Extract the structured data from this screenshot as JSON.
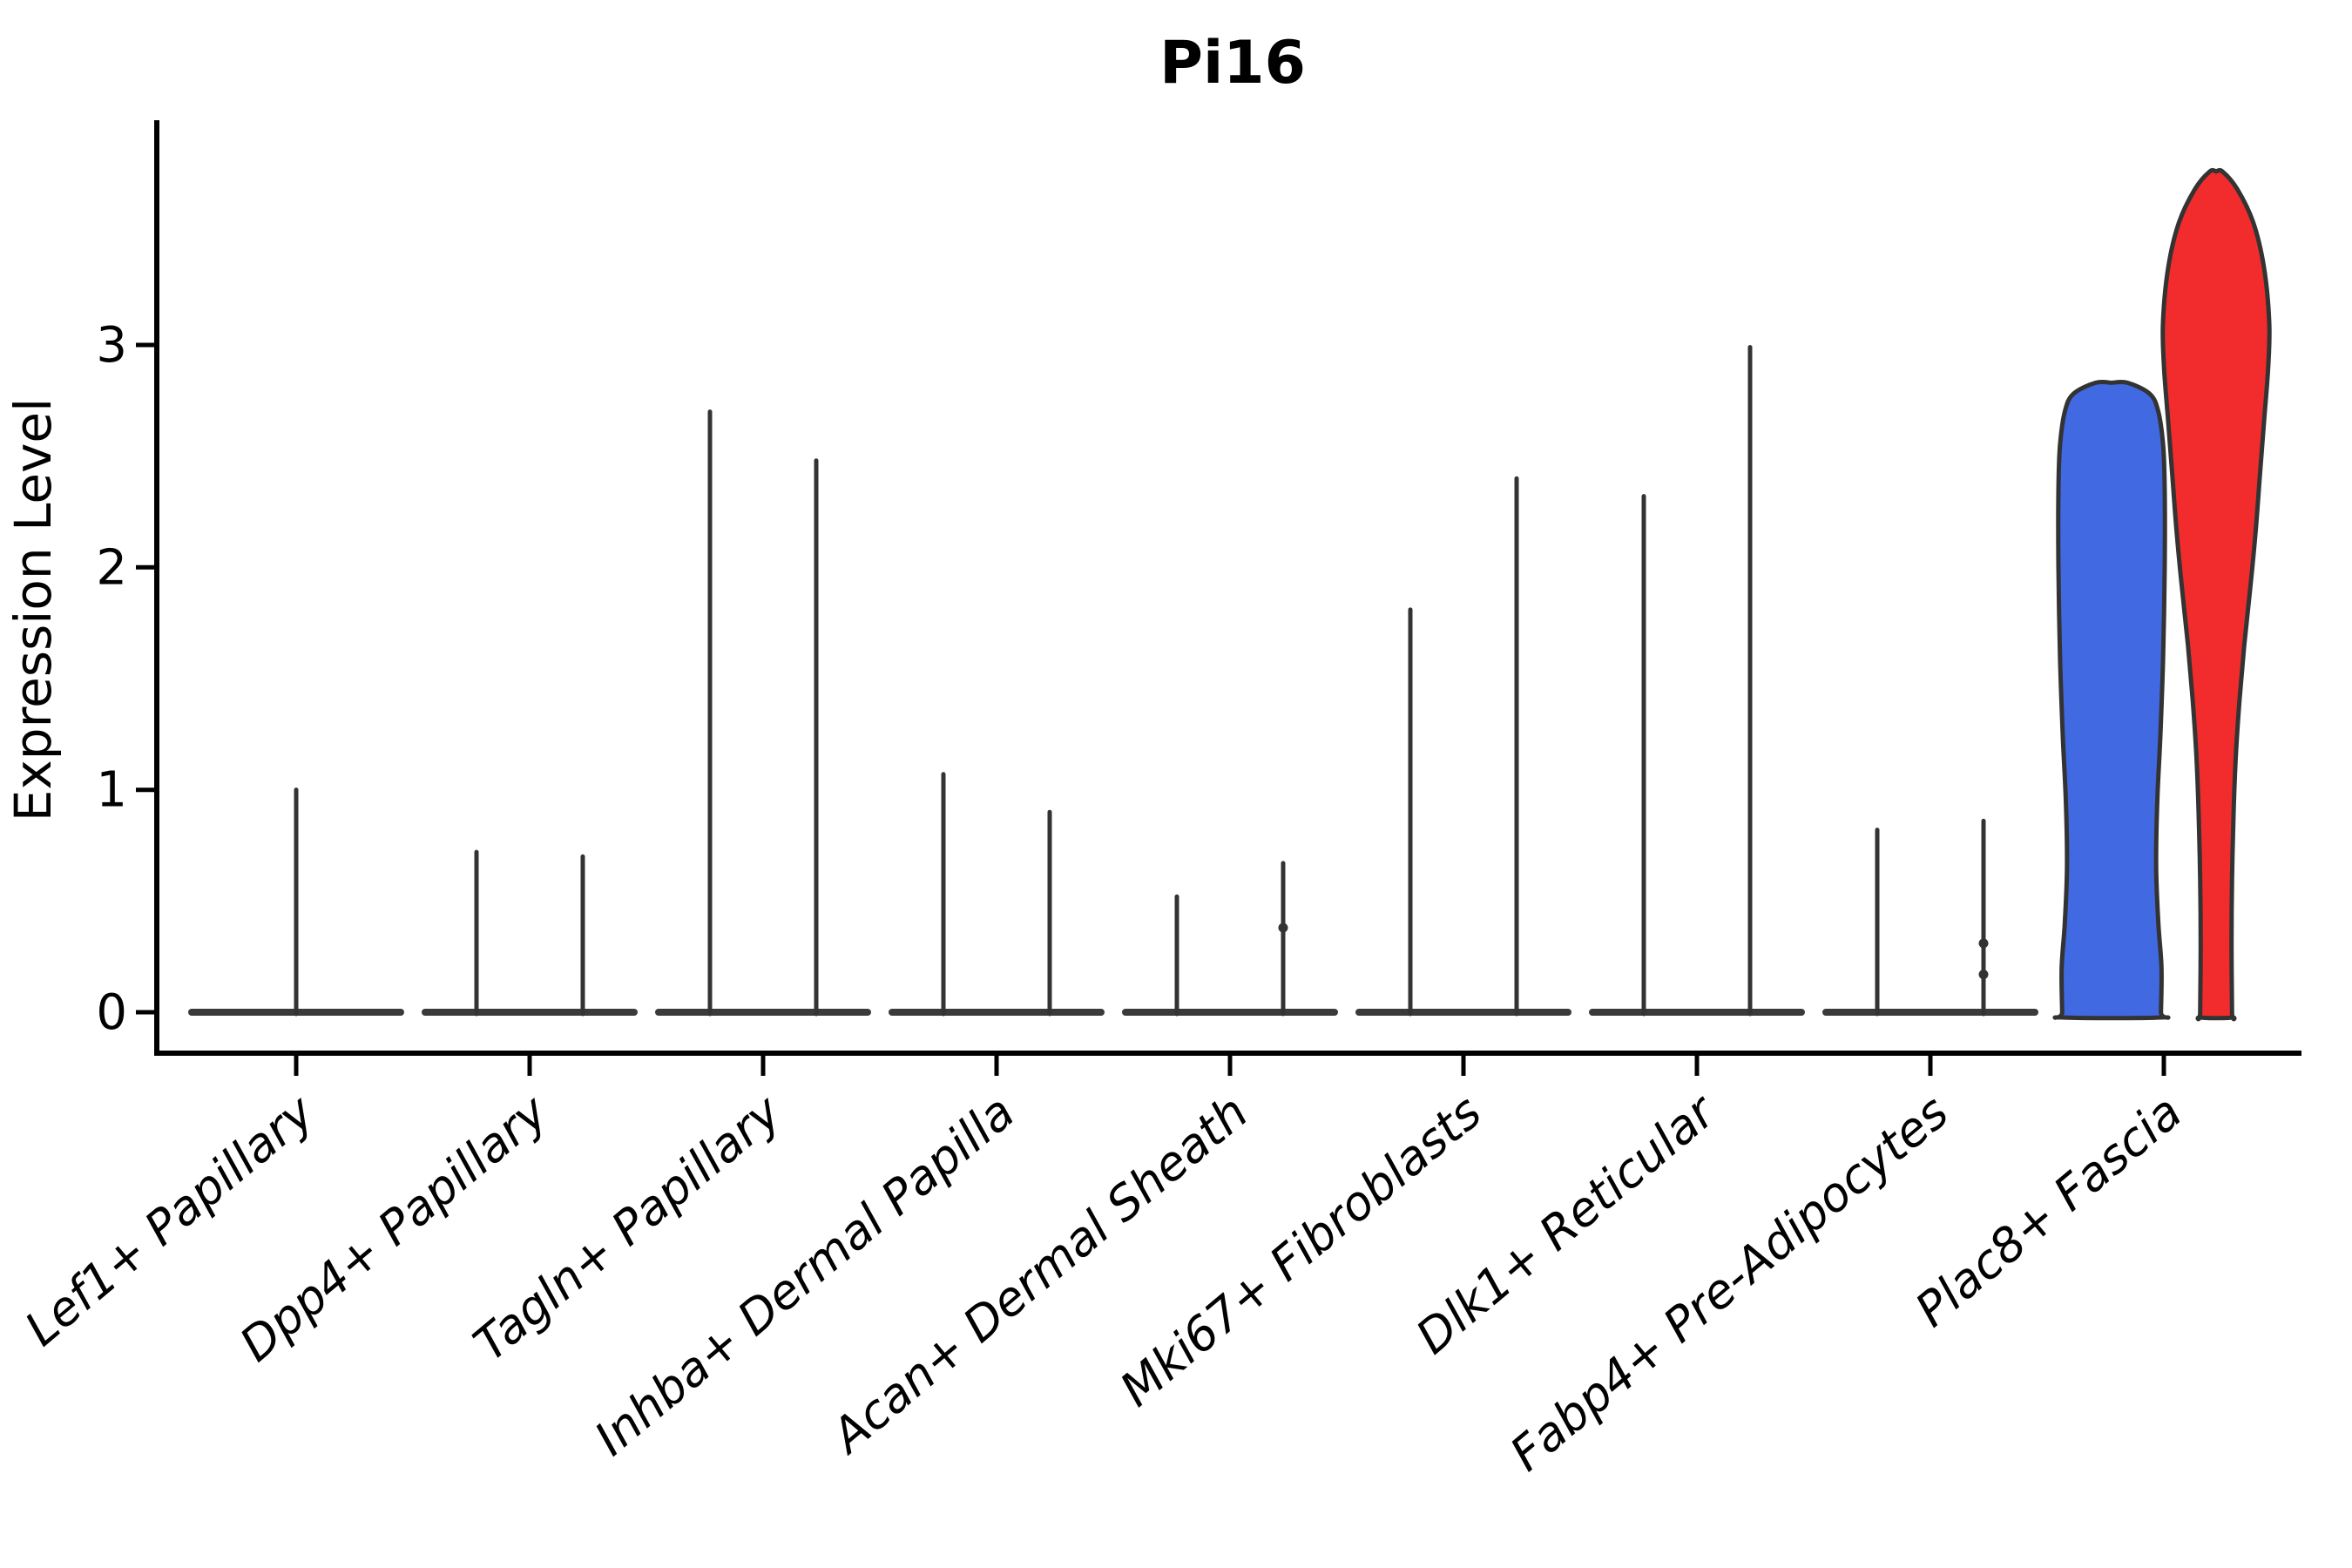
{
  "chart_data": {
    "type": "violin",
    "title": "Pi16",
    "ylabel": "Expression Level",
    "xlabel": "",
    "grid": false,
    "legend": null,
    "ylim": [
      -0.18,
      4.0
    ],
    "yticks": [
      0,
      1,
      2,
      3
    ],
    "ytick_labels": [
      "0",
      "1",
      "2",
      "3"
    ],
    "group_colors": {
      "left_group": "#4169E1",
      "right_group": "#F22C2C"
    },
    "categories": [
      {
        "name": "Lef1+ Papillary",
        "base_bar": true,
        "violins": [
          {
            "kind": "spike",
            "offset": 0,
            "max": 1.0
          }
        ]
      },
      {
        "name": "Dpp4+ Papillary",
        "base_bar": true,
        "violins": [
          {
            "kind": "spike",
            "offset": -61,
            "max": 0.72
          },
          {
            "kind": "spike",
            "offset": 61,
            "max": 0.7
          }
        ]
      },
      {
        "name": "Tagln+ Papillary",
        "base_bar": true,
        "violins": [
          {
            "kind": "spike",
            "offset": -61,
            "max": 2.7
          },
          {
            "kind": "spike",
            "offset": 61,
            "max": 2.48
          }
        ]
      },
      {
        "name": "Inhba+ Dermal Papilla",
        "base_bar": true,
        "violins": [
          {
            "kind": "spike",
            "offset": -61,
            "max": 1.07
          },
          {
            "kind": "spike",
            "offset": 61,
            "max": 0.9
          }
        ]
      },
      {
        "name": "Acan+ Dermal Sheath",
        "base_bar": true,
        "violins": [
          {
            "kind": "spike",
            "offset": -61,
            "max": 0.52
          },
          {
            "kind": "spike",
            "offset": 61,
            "max": 0.67,
            "dots": [
              0.38
            ]
          }
        ]
      },
      {
        "name": "Mki67+ Fibroblasts",
        "base_bar": true,
        "violins": [
          {
            "kind": "spike",
            "offset": -61,
            "max": 1.81
          },
          {
            "kind": "spike",
            "offset": 61,
            "max": 2.4
          }
        ]
      },
      {
        "name": "Dlk1+ Reticular",
        "base_bar": true,
        "violins": [
          {
            "kind": "spike",
            "offset": -61,
            "max": 2.32
          },
          {
            "kind": "spike",
            "offset": 61,
            "max": 2.99
          }
        ]
      },
      {
        "name": "Fabp4+ Pre-Adipocytes",
        "base_bar": true,
        "violins": [
          {
            "kind": "spike",
            "offset": -61,
            "max": 0.82
          },
          {
            "kind": "spike",
            "offset": 61,
            "max": 0.86,
            "dots": [
              0.31,
              0.17
            ]
          }
        ]
      },
      {
        "name": "Plac8+ Fascia",
        "base_bar": false,
        "violins": [
          {
            "kind": "violin",
            "offset": -60,
            "max": 2.83,
            "fill": "#4169E1",
            "profile": [
              [
                2.83,
                0.3
              ],
              [
                2.78,
                0.72
              ],
              [
                2.7,
                0.88
              ],
              [
                2.55,
                0.97
              ],
              [
                2.35,
                1.0
              ],
              [
                2.0,
                1.0
              ],
              [
                1.6,
                0.97
              ],
              [
                1.25,
                0.92
              ],
              [
                0.95,
                0.86
              ],
              [
                0.65,
                0.84
              ],
              [
                0.4,
                0.88
              ],
              [
                0.2,
                0.94
              ],
              [
                0.0,
                0.93
              ]
            ]
          },
          {
            "kind": "violin",
            "offset": 60,
            "max": 3.78,
            "fill": "#F22C2C",
            "profile": [
              [
                3.78,
                0.12
              ],
              [
                3.7,
                0.4
              ],
              [
                3.55,
                0.7
              ],
              [
                3.35,
                0.9
              ],
              [
                3.1,
                1.0
              ],
              [
                2.9,
                0.98
              ],
              [
                2.65,
                0.9
              ],
              [
                2.4,
                0.82
              ],
              [
                2.15,
                0.74
              ],
              [
                1.9,
                0.64
              ],
              [
                1.65,
                0.53
              ],
              [
                1.4,
                0.44
              ],
              [
                1.15,
                0.37
              ],
              [
                0.9,
                0.33
              ],
              [
                0.6,
                0.3
              ],
              [
                0.3,
                0.29
              ],
              [
                0.0,
                0.3
              ]
            ]
          }
        ]
      }
    ],
    "style": {
      "axis_color": "#000000",
      "spike_color": "#333333",
      "bar_color": "#3a3a3a",
      "violin_stroke": "#333333",
      "background": "#ffffff"
    }
  }
}
